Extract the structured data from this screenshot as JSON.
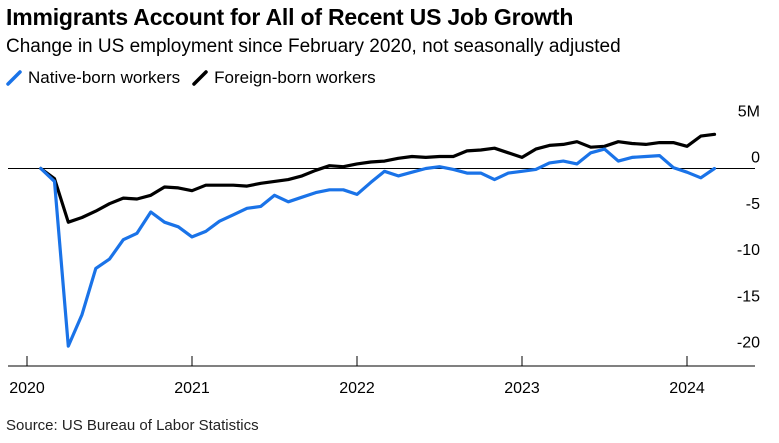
{
  "title": "Immigrants Account for All of Recent US Job Growth",
  "subtitle": "Change in US employment since February 2020, not seasonally adjusted",
  "source": "Source: US Bureau of Labor Statistics",
  "chart_data": {
    "type": "line",
    "title": "Immigrants Account for All of Recent US Job Growth",
    "subtitle": "Change in US employment since February 2020, not seasonally adjusted",
    "xlabel": "",
    "ylabel": "",
    "y_unit_label": "5M",
    "ylim": [
      -21,
      6
    ],
    "y_ticks": [
      5,
      0,
      -5,
      -10,
      -15,
      -20
    ],
    "y_tick_labels": [
      "5M",
      "0",
      "-5",
      "-10",
      "-15",
      "-20"
    ],
    "x_ticks": [
      "2020",
      "2021",
      "2022",
      "2023",
      "2024"
    ],
    "grid": false,
    "zero_line": true,
    "legend_position": "top-left",
    "x": [
      "2020-02",
      "2020-03",
      "2020-04",
      "2020-05",
      "2020-06",
      "2020-07",
      "2020-08",
      "2020-09",
      "2020-10",
      "2020-11",
      "2020-12",
      "2021-01",
      "2021-02",
      "2021-03",
      "2021-04",
      "2021-05",
      "2021-06",
      "2021-07",
      "2021-08",
      "2021-09",
      "2021-10",
      "2021-11",
      "2021-12",
      "2022-01",
      "2022-02",
      "2022-03",
      "2022-04",
      "2022-05",
      "2022-06",
      "2022-07",
      "2022-08",
      "2022-09",
      "2022-10",
      "2022-11",
      "2022-12",
      "2023-01",
      "2023-02",
      "2023-03",
      "2023-04",
      "2023-05",
      "2023-06",
      "2023-07",
      "2023-08",
      "2023-09",
      "2023-10",
      "2023-11",
      "2023-12",
      "2024-01",
      "2024-02",
      "2024-03"
    ],
    "series": [
      {
        "name": "Native-born workers",
        "color": "#1a73e8",
        "values": [
          0,
          -1.4,
          -19.2,
          -15.8,
          -10.8,
          -9.8,
          -7.7,
          -7.0,
          -4.7,
          -5.8,
          -6.3,
          -7.4,
          -6.8,
          -5.7,
          -5.0,
          -4.3,
          -4.1,
          -2.9,
          -3.6,
          -3.1,
          -2.6,
          -2.3,
          -2.3,
          -2.8,
          -1.5,
          -0.3,
          -0.8,
          -0.4,
          0.0,
          0.2,
          -0.1,
          -0.5,
          -0.5,
          -1.2,
          -0.5,
          -0.3,
          -0.1,
          0.6,
          0.8,
          0.5,
          1.7,
          2.1,
          0.8,
          1.2,
          1.3,
          1.4,
          0.1,
          -0.4,
          -1.0,
          0.0
        ]
      },
      {
        "name": "Foreign-born workers",
        "color": "#000000",
        "values": [
          0,
          -1.1,
          -5.8,
          -5.3,
          -4.6,
          -3.8,
          -3.2,
          -3.3,
          -2.9,
          -2.0,
          -2.1,
          -2.4,
          -1.8,
          -1.8,
          -1.8,
          -1.9,
          -1.6,
          -1.4,
          -1.2,
          -0.8,
          -0.2,
          0.3,
          0.2,
          0.5,
          0.7,
          0.8,
          1.1,
          1.3,
          1.2,
          1.3,
          1.3,
          1.9,
          2.0,
          2.2,
          1.7,
          1.2,
          2.1,
          2.5,
          2.6,
          2.9,
          2.3,
          2.4,
          2.9,
          2.7,
          2.6,
          2.8,
          2.8,
          2.4,
          3.5,
          3.7
        ]
      }
    ]
  }
}
